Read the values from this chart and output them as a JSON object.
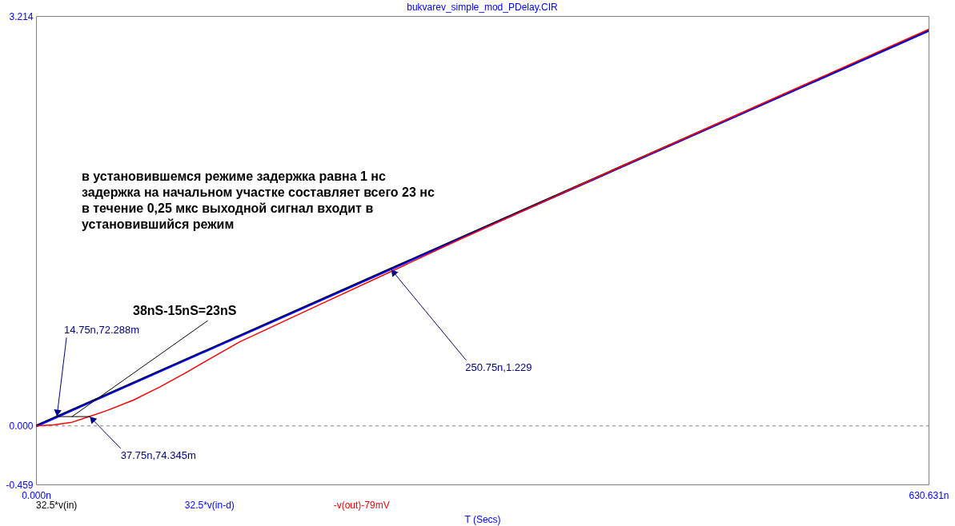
{
  "chart_data": {
    "type": "line",
    "title": "bukvarev_simple_mod_PDelay.CIR",
    "xlabel": "T (Secs)",
    "xlim": [
      0,
      630.631
    ],
    "ylim": [
      -0.459,
      3.214
    ],
    "xticks": [
      {
        "value": 0,
        "label": "0.000n"
      },
      {
        "value": 630.631,
        "label": "630.631n"
      }
    ],
    "yticks": [
      -0.459,
      {
        "value": 0,
        "label": "0.000"
      },
      3.214
    ],
    "line_style": "solid",
    "series": [
      {
        "name": "32.5*v(in)",
        "color": "#000000",
        "x": [
          0,
          630.631
        ],
        "values": [
          0,
          3.1
        ]
      },
      {
        "name": "32.5*v(in-d)",
        "color": "#0000ff",
        "x": [
          0,
          1,
          630.631
        ],
        "values": [
          0,
          0,
          3.095
        ]
      },
      {
        "name": "-v(out)-79mV",
        "color": "#ff0000",
        "x": [
          0,
          12.3,
          25.5,
          37.75,
          50,
          68.8,
          87.7,
          106.5,
          125.3,
          144.2,
          200,
          250.75,
          300,
          400,
          500,
          630.631
        ],
        "values": [
          0,
          0.008,
          0.029,
          0.074,
          0.12,
          0.202,
          0.306,
          0.421,
          0.542,
          0.661,
          0.949,
          1.21,
          1.465,
          1.967,
          2.462,
          3.11
        ]
      },
      {
        "color": "#000000",
        "x": [
          14.75,
          37.75
        ],
        "values": [
          0.073,
          0.073
        ]
      },
      {
        "color": "#000000",
        "x": [
          25.45,
          121.2
        ],
        "values": [
          0.073,
          0.824
        ]
      }
    ],
    "ref_lines": [
      {
        "axis": "y",
        "value": 0,
        "color": "#808080",
        "line_style": "dashed"
      }
    ],
    "annotations": [
      "в установившемся режиме задержка равна 1 нс\nзадержка на начальном участке составляет всего 23 нс\nв течение 0,25 мкс выходной сигнал входит в\nустановившийся режим",
      "38nS-15nS=23nS",
      {
        "text": "14.75n,72.288m",
        "x": 14.75,
        "y": 0.072288
      },
      {
        "text": "37.75n,74.345m",
        "x": 37.75,
        "y": 0.074345
      },
      {
        "text": "250.75n,1.229",
        "x": 250.75,
        "y": 1.229
      }
    ],
    "legend": "bottom"
  }
}
